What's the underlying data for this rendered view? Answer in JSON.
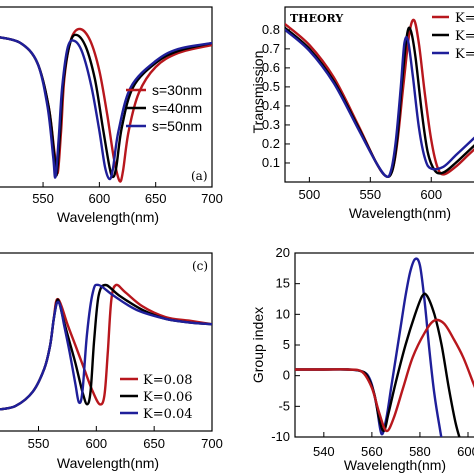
{
  "colors": {
    "red": "#b8171d",
    "black": "#000000",
    "blue": "#1f1f9a"
  },
  "chart_data": [
    {
      "type": "line",
      "panel": "a",
      "tag": "(a)",
      "xlabel": "Wavelength(nm)",
      "ylabel": "",
      "xlim": [
        510,
        700
      ],
      "ylim": [
        0,
        0.9
      ],
      "xticks": [
        "550",
        "600",
        "650",
        "700"
      ],
      "legend": "center-right",
      "series": [
        {
          "name": "s=30nm",
          "color": "#b8171d",
          "x": [
            510,
            530,
            545,
            555,
            560,
            563,
            566,
            569,
            575,
            583,
            592,
            600,
            607,
            613,
            618,
            621,
            626,
            635,
            650,
            670,
            700
          ],
          "y": [
            0.75,
            0.72,
            0.62,
            0.4,
            0.18,
            0.07,
            0.28,
            0.55,
            0.74,
            0.79,
            0.73,
            0.58,
            0.36,
            0.14,
            0.03,
            0.08,
            0.28,
            0.47,
            0.6,
            0.67,
            0.71
          ]
        },
        {
          "name": "s=40nm",
          "color": "#000000",
          "x": [
            510,
            530,
            545,
            555,
            560,
            562,
            565,
            568,
            574,
            580,
            588,
            596,
            603,
            609,
            612,
            615,
            620,
            630,
            650,
            670,
            700
          ],
          "y": [
            0.75,
            0.72,
            0.62,
            0.4,
            0.16,
            0.06,
            0.26,
            0.52,
            0.72,
            0.76,
            0.7,
            0.54,
            0.3,
            0.1,
            0.05,
            0.1,
            0.3,
            0.5,
            0.62,
            0.68,
            0.72
          ]
        },
        {
          "name": "s=50nm",
          "color": "#1f1f9a",
          "x": [
            510,
            530,
            545,
            554,
            559,
            561,
            564,
            567,
            572,
            578,
            585,
            593,
            600,
            605,
            609,
            612,
            617,
            628,
            650,
            670,
            700
          ],
          "y": [
            0.75,
            0.72,
            0.62,
            0.4,
            0.15,
            0.05,
            0.25,
            0.5,
            0.7,
            0.73,
            0.67,
            0.5,
            0.28,
            0.1,
            0.04,
            0.09,
            0.28,
            0.5,
            0.63,
            0.69,
            0.72
          ]
        }
      ]
    },
    {
      "type": "line",
      "panel": "b",
      "title": "THEORY",
      "xlabel": "Wavelength(nm)",
      "ylabel": "Transmission",
      "xlim": [
        480,
        640
      ],
      "ylim": [
        0,
        0.92
      ],
      "xticks": [
        "500",
        "550",
        "600"
      ],
      "yticks": [
        "0.1",
        "0.2",
        "0.3",
        "0.4",
        "0.5",
        "0.6",
        "0.7",
        "0.8"
      ],
      "legend": "top-right",
      "series": [
        {
          "name": "K=",
          "color": "#b8171d",
          "x": [
            480,
            500,
            520,
            540,
            555,
            563,
            568,
            572,
            577,
            582,
            586,
            590,
            595,
            600,
            605,
            610,
            620,
            630,
            640
          ],
          "y": [
            0.83,
            0.72,
            0.55,
            0.3,
            0.1,
            0.03,
            0.06,
            0.2,
            0.5,
            0.78,
            0.85,
            0.72,
            0.45,
            0.22,
            0.08,
            0.04,
            0.08,
            0.14,
            0.2
          ]
        },
        {
          "name": "K=",
          "color": "#000000",
          "x": [
            480,
            500,
            520,
            540,
            555,
            563,
            568,
            572,
            576,
            580,
            583,
            587,
            592,
            597,
            603,
            610,
            620,
            630,
            640
          ],
          "y": [
            0.81,
            0.7,
            0.53,
            0.29,
            0.1,
            0.03,
            0.06,
            0.22,
            0.52,
            0.77,
            0.8,
            0.66,
            0.38,
            0.16,
            0.06,
            0.05,
            0.1,
            0.16,
            0.22
          ]
        },
        {
          "name": "K=",
          "color": "#1f1f9a",
          "x": [
            480,
            500,
            520,
            540,
            555,
            563,
            567,
            571,
            575,
            578,
            581,
            585,
            590,
            595,
            600,
            610,
            620,
            630,
            640
          ],
          "y": [
            0.8,
            0.69,
            0.52,
            0.28,
            0.1,
            0.03,
            0.06,
            0.22,
            0.5,
            0.73,
            0.74,
            0.55,
            0.28,
            0.12,
            0.07,
            0.08,
            0.14,
            0.2,
            0.26
          ]
        }
      ]
    },
    {
      "type": "line",
      "panel": "c",
      "tag": "(c)",
      "xlabel": "Wavelength(nm)",
      "ylabel": "",
      "xlim": [
        515,
        700
      ],
      "ylim": [
        0,
        1
      ],
      "xticks": [
        "550",
        "600",
        "650",
        "700"
      ],
      "legend": "bottom-right",
      "series": [
        {
          "name": "K=0.08",
          "color": "#b8171d",
          "x": [
            515,
            530,
            545,
            555,
            560,
            563,
            565,
            567,
            570,
            575,
            582,
            590,
            597,
            603,
            607,
            610,
            613,
            617,
            625,
            640,
            660,
            680,
            700
          ],
          "y": [
            0.12,
            0.14,
            0.22,
            0.35,
            0.48,
            0.62,
            0.72,
            0.74,
            0.7,
            0.6,
            0.48,
            0.34,
            0.22,
            0.15,
            0.2,
            0.45,
            0.74,
            0.82,
            0.78,
            0.7,
            0.64,
            0.62,
            0.6
          ]
        },
        {
          "name": "K=0.06",
          "color": "#000000",
          "x": [
            515,
            530,
            545,
            555,
            560,
            563,
            566,
            568,
            571,
            576,
            582,
            588,
            592,
            595,
            598,
            602,
            608,
            620,
            640,
            660,
            680,
            700
          ],
          "y": [
            0.12,
            0.14,
            0.22,
            0.35,
            0.48,
            0.62,
            0.73,
            0.72,
            0.64,
            0.52,
            0.38,
            0.22,
            0.15,
            0.22,
            0.5,
            0.76,
            0.82,
            0.76,
            0.68,
            0.63,
            0.61,
            0.6
          ]
        },
        {
          "name": "K=0.04",
          "color": "#1f1f9a",
          "x": [
            515,
            530,
            545,
            555,
            560,
            563,
            566,
            569,
            572,
            577,
            582,
            585,
            588,
            592,
            597,
            602,
            615,
            635,
            660,
            680,
            700
          ],
          "y": [
            0.12,
            0.14,
            0.22,
            0.35,
            0.48,
            0.62,
            0.72,
            0.7,
            0.6,
            0.44,
            0.26,
            0.16,
            0.22,
            0.55,
            0.78,
            0.82,
            0.76,
            0.68,
            0.63,
            0.61,
            0.6
          ]
        }
      ]
    },
    {
      "type": "line",
      "panel": "d",
      "xlabel": "Wavelength(nm)",
      "ylabel": "Group index",
      "xlim": [
        528,
        605
      ],
      "ylim": [
        -10,
        20
      ],
      "xticks": [
        "540",
        "560",
        "580",
        "600"
      ],
      "yticks": [
        "-10",
        "-5",
        "0",
        "5",
        "10",
        "15",
        "20"
      ],
      "legend": "none",
      "series": [
        {
          "name": "",
          "color": "#1f1f9a",
          "x": [
            528,
            540,
            550,
            555,
            558,
            560,
            562,
            564,
            566,
            568,
            570,
            572,
            574,
            576,
            578,
            580,
            582,
            584,
            586,
            588,
            590,
            592
          ],
          "y": [
            1,
            1,
            1,
            0.8,
            0.2,
            -1.5,
            -5,
            -9.5,
            -7,
            -2,
            3,
            8,
            13,
            17,
            19,
            18,
            12,
            4,
            -3,
            -8,
            -12,
            -12
          ]
        },
        {
          "name": "",
          "color": "#000000",
          "x": [
            528,
            540,
            550,
            555,
            558,
            561,
            563,
            565,
            567,
            570,
            574,
            578,
            581,
            583,
            586,
            589,
            592,
            595,
            598
          ],
          "y": [
            1,
            1,
            1,
            0.8,
            0,
            -3,
            -7,
            -9,
            -6,
            -1,
            5,
            10,
            13,
            13,
            10,
            5,
            -2,
            -8,
            -12
          ]
        },
        {
          "name": "",
          "color": "#b8171d",
          "x": [
            528,
            540,
            550,
            556,
            560,
            563,
            566,
            569,
            573,
            577,
            582,
            586,
            590,
            594,
            598,
            602,
            605
          ],
          "y": [
            1,
            1,
            1,
            0.6,
            -2,
            -6,
            -9,
            -7,
            -2,
            3,
            7,
            9,
            8.5,
            6,
            3,
            -1,
            -4
          ]
        }
      ]
    }
  ]
}
